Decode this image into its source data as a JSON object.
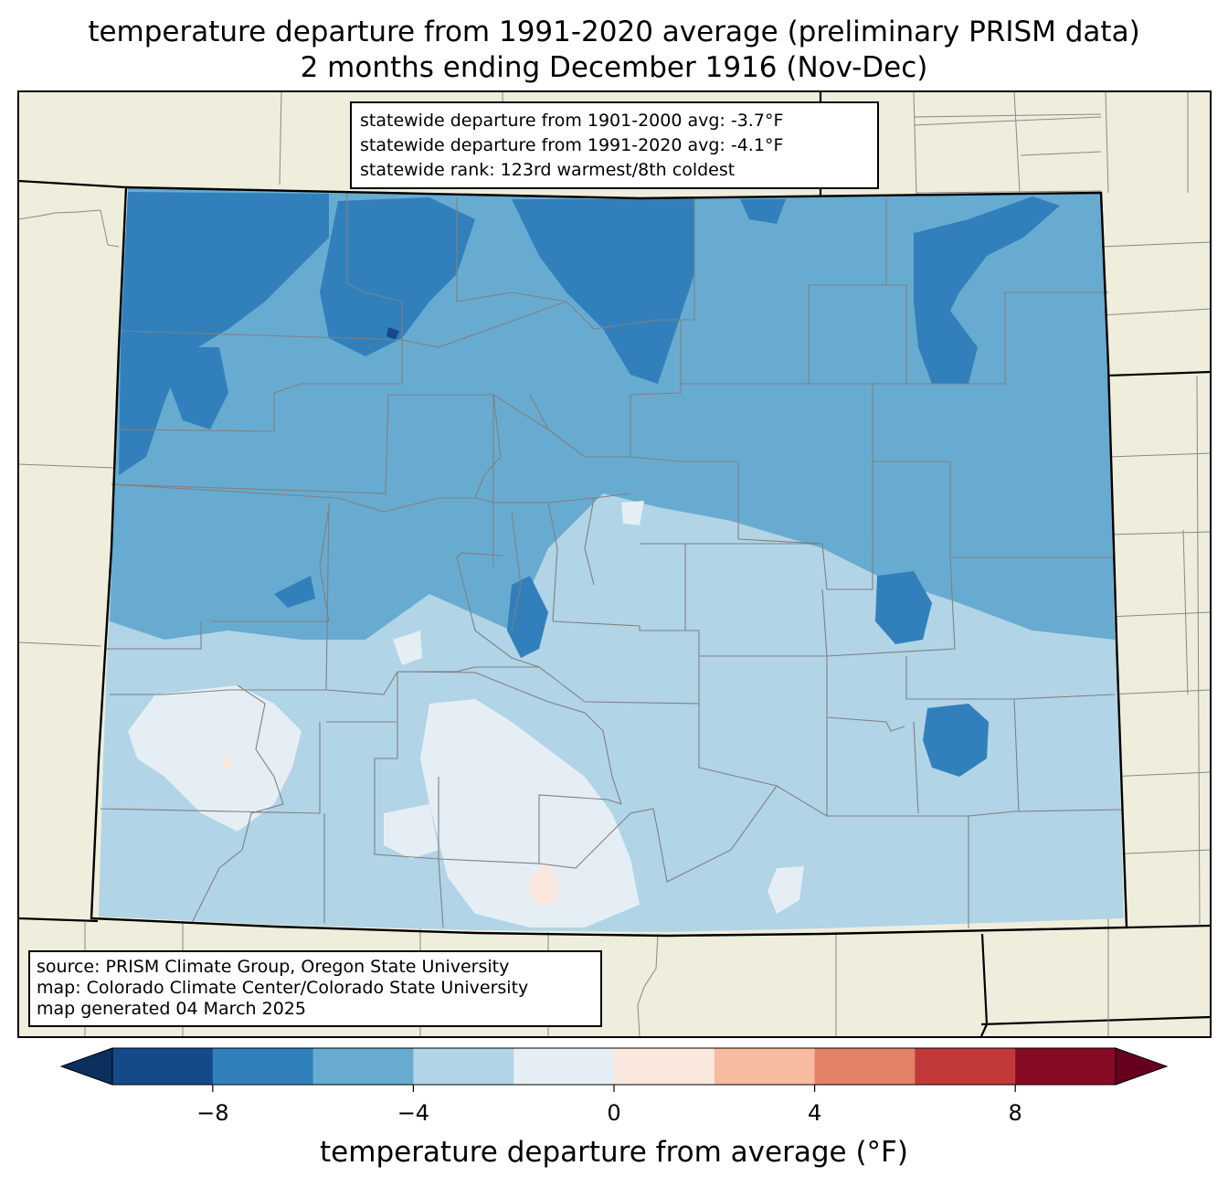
{
  "title": {
    "line1": "temperature departure from 1991-2020 average (preliminary PRISM data)",
    "line2": "2 months ending December 1916 (Nov-Dec)"
  },
  "stats": {
    "line1": "statewide departure from 1901-2000 avg: -3.7°F",
    "line2": "statewide departure from 1991-2020 avg: -4.1°F",
    "line3": "statewide rank: 123rd warmest/8th coldest"
  },
  "credits": {
    "line1": "source: PRISM Climate Group, Oregon State University",
    "line2": "map: Colorado Climate Center/Colorado State University",
    "line3": "map generated 04 March 2025"
  },
  "colorbar": {
    "label": "temperature departure from average (°F)",
    "ticks": [
      "−8",
      "−4",
      "0",
      "4",
      "8"
    ],
    "tick_values": [
      -8,
      -4,
      0,
      4,
      8
    ],
    "levels": [
      -10,
      -8,
      -6,
      -4,
      -2,
      0,
      2,
      4,
      6,
      8,
      10
    ],
    "colors": [
      "#144a88",
      "#3180bc",
      "#68abd1",
      "#b1d4e7",
      "#e5eef4",
      "#fae8df",
      "#f7bba2",
      "#e28168",
      "#c2393a",
      "#870a24"
    ],
    "under_color": "#0b3060",
    "over_color": "#67001f"
  },
  "map": {
    "land_color": "#efeedd",
    "palette": {
      "cold_8_6": "#3180bc",
      "cold_6_4": "#68abd1",
      "cool_4_2": "#b1d4e7",
      "near_2_0": "#e5eef4",
      "warm_0_2": "#fae8df",
      "extreme_10_8": "#144a88"
    }
  }
}
